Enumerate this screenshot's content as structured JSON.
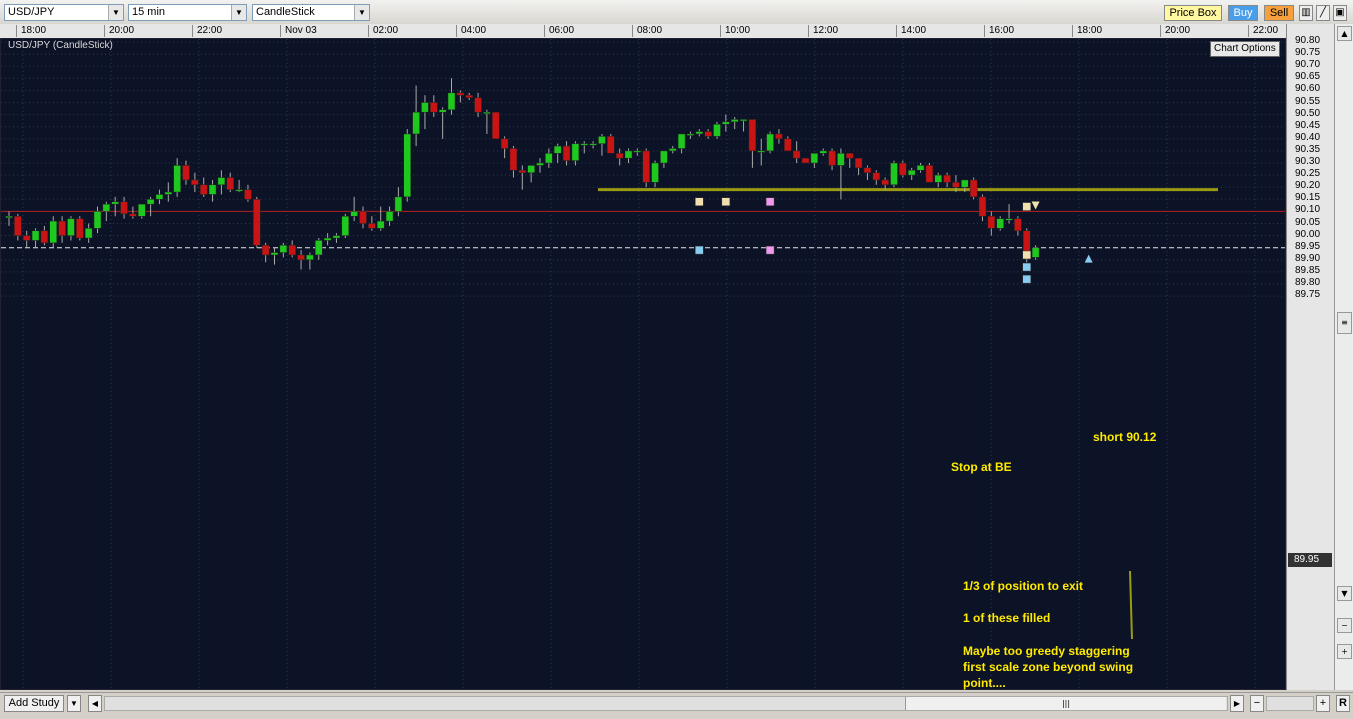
{
  "toolbar": {
    "symbol": "USD/JPY",
    "interval": "15 min",
    "chart_type": "CandleStick",
    "price_box_label": "Price Box",
    "buy_label": "Buy",
    "sell_label": "Sell",
    "colors": {
      "buy": "#4a9ee8",
      "sell": "#f5a03c",
      "price_box": "#fff8a0"
    }
  },
  "chart": {
    "title": "USD/JPY (CandleStick)",
    "options_label": "Chart Options",
    "time_labels": [
      "18:00",
      "20:00",
      "22:00",
      "Nov 03",
      "02:00",
      "04:00",
      "06:00",
      "08:00",
      "10:00",
      "12:00",
      "14:00",
      "16:00",
      "18:00",
      "20:00",
      "22:00"
    ],
    "price_labels": [
      "90.80",
      "90.75",
      "90.70",
      "90.65",
      "90.60",
      "90.55",
      "90.50",
      "90.45",
      "90.40",
      "90.35",
      "90.30",
      "90.25",
      "90.20",
      "90.15",
      "90.10",
      "90.05",
      "90.00",
      "89.95",
      "89.90",
      "89.85",
      "89.80",
      "89.75"
    ],
    "current_price": "89.95",
    "colors": {
      "up": "#1ec81e",
      "down": "#c81414",
      "background": "#0d1326",
      "grid": "#2a3560",
      "annotation": "#ffeb00",
      "support_line": "#9a9a10",
      "stop_line": "#b02020"
    }
  },
  "annotations": {
    "short_entry": "short 90.12",
    "stop": "Stop at BE",
    "exit_note": "1/3 of position to exit",
    "filled_note": "1 of these filled",
    "greedy_note_line1": "Maybe too greedy staggering",
    "greedy_note_line2": "first scale zone beyond swing",
    "greedy_note_line3": "point...."
  },
  "bottom": {
    "add_study_label": "Add Study",
    "zoom_out": "−",
    "zoom_in": "+",
    "reset": "R"
  },
  "chart_data": {
    "type": "candlestick",
    "symbol": "USD/JPY",
    "interval": "15 min",
    "ylim": [
      89.75,
      90.8
    ],
    "candles": [
      [
        90.08,
        90.1,
        90.04,
        90.08
      ],
      [
        90.08,
        90.09,
        89.98,
        90.0
      ],
      [
        90.0,
        90.02,
        89.95,
        89.98
      ],
      [
        89.98,
        90.03,
        89.95,
        90.02
      ],
      [
        90.02,
        90.04,
        89.96,
        89.97
      ],
      [
        89.97,
        90.08,
        89.95,
        90.06
      ],
      [
        90.06,
        90.08,
        89.97,
        90.0
      ],
      [
        90.0,
        90.08,
        89.98,
        90.07
      ],
      [
        90.07,
        90.08,
        89.98,
        89.99
      ],
      [
        89.99,
        90.05,
        89.97,
        90.03
      ],
      [
        90.03,
        90.12,
        90.01,
        90.1
      ],
      [
        90.1,
        90.14,
        90.06,
        90.13
      ],
      [
        90.13,
        90.16,
        90.08,
        90.14
      ],
      [
        90.14,
        90.16,
        90.07,
        90.09
      ],
      [
        90.09,
        90.12,
        90.07,
        90.08
      ],
      [
        90.08,
        90.13,
        90.07,
        90.13
      ],
      [
        90.13,
        90.16,
        90.08,
        90.15
      ],
      [
        90.15,
        90.19,
        90.13,
        90.17
      ],
      [
        90.17,
        90.22,
        90.14,
        90.18
      ],
      [
        90.18,
        90.32,
        90.16,
        90.29
      ],
      [
        90.29,
        90.31,
        90.21,
        90.23
      ],
      [
        90.23,
        90.26,
        90.18,
        90.21
      ],
      [
        90.21,
        90.24,
        90.16,
        90.17
      ],
      [
        90.17,
        90.23,
        90.14,
        90.21
      ],
      [
        90.21,
        90.27,
        90.17,
        90.24
      ],
      [
        90.24,
        90.26,
        90.18,
        90.19
      ],
      [
        90.19,
        90.23,
        90.18,
        90.19
      ],
      [
        90.19,
        90.21,
        90.14,
        90.15
      ],
      [
        90.15,
        90.16,
        89.95,
        89.96
      ],
      [
        89.96,
        89.97,
        89.89,
        89.92
      ],
      [
        89.92,
        89.95,
        89.88,
        89.93
      ],
      [
        89.93,
        89.97,
        89.91,
        89.96
      ],
      [
        89.96,
        89.98,
        89.91,
        89.92
      ],
      [
        89.92,
        89.94,
        89.86,
        89.9
      ],
      [
        89.9,
        89.93,
        89.86,
        89.92
      ],
      [
        89.92,
        89.99,
        89.9,
        89.98
      ],
      [
        89.98,
        90.01,
        89.96,
        89.99
      ],
      [
        89.99,
        90.01,
        89.97,
        90.0
      ],
      [
        90.0,
        90.09,
        89.99,
        90.08
      ],
      [
        90.08,
        90.16,
        90.06,
        90.1
      ],
      [
        90.1,
        90.12,
        90.03,
        90.05
      ],
      [
        90.05,
        90.08,
        90.02,
        90.03
      ],
      [
        90.03,
        90.12,
        90.02,
        90.06
      ],
      [
        90.06,
        90.12,
        90.04,
        90.1
      ],
      [
        90.1,
        90.2,
        90.08,
        90.16
      ],
      [
        90.16,
        90.44,
        90.14,
        90.42
      ],
      [
        90.42,
        90.62,
        90.37,
        90.51
      ],
      [
        90.51,
        90.58,
        90.44,
        90.55
      ],
      [
        90.55,
        90.58,
        90.49,
        90.51
      ],
      [
        90.51,
        90.53,
        90.4,
        90.52
      ],
      [
        90.52,
        90.65,
        90.5,
        90.59
      ],
      [
        90.59,
        90.6,
        90.55,
        90.58
      ],
      [
        90.58,
        90.59,
        90.56,
        90.57
      ],
      [
        90.57,
        90.59,
        90.49,
        90.51
      ],
      [
        90.51,
        90.52,
        90.42,
        90.51
      ],
      [
        90.51,
        90.51,
        90.4,
        90.4
      ],
      [
        90.4,
        90.41,
        90.32,
        90.36
      ],
      [
        90.36,
        90.37,
        90.24,
        90.27
      ],
      [
        90.27,
        90.29,
        90.19,
        90.26
      ],
      [
        90.26,
        90.29,
        90.22,
        90.29
      ],
      [
        90.29,
        90.32,
        90.26,
        90.3
      ],
      [
        90.3,
        90.36,
        90.28,
        90.34
      ],
      [
        90.34,
        90.38,
        90.3,
        90.37
      ],
      [
        90.37,
        90.39,
        90.29,
        90.31
      ],
      [
        90.31,
        90.39,
        90.29,
        90.38
      ],
      [
        90.38,
        90.39,
        90.34,
        90.38
      ],
      [
        90.38,
        90.39,
        90.36,
        90.38
      ],
      [
        90.38,
        90.42,
        90.33,
        90.41
      ],
      [
        90.41,
        90.42,
        90.34,
        90.34
      ],
      [
        90.34,
        90.36,
        90.29,
        90.32
      ],
      [
        90.32,
        90.36,
        90.3,
        90.35
      ],
      [
        90.35,
        90.36,
        90.33,
        90.35
      ],
      [
        90.35,
        90.36,
        90.2,
        90.22
      ],
      [
        90.22,
        90.31,
        90.2,
        90.3
      ],
      [
        90.3,
        90.35,
        90.28,
        90.35
      ],
      [
        90.35,
        90.37,
        90.34,
        90.36
      ],
      [
        90.36,
        90.42,
        90.34,
        90.42
      ],
      [
        90.42,
        90.43,
        90.4,
        90.42
      ],
      [
        90.42,
        90.44,
        90.41,
        90.43
      ],
      [
        90.43,
        90.44,
        90.4,
        90.41
      ],
      [
        90.41,
        90.47,
        90.4,
        90.46
      ],
      [
        90.46,
        90.5,
        90.43,
        90.47
      ],
      [
        90.47,
        90.49,
        90.44,
        90.48
      ],
      [
        90.48,
        90.48,
        90.43,
        90.48
      ],
      [
        90.48,
        90.48,
        90.28,
        90.35
      ],
      [
        90.35,
        90.4,
        90.29,
        90.35
      ],
      [
        90.35,
        90.43,
        90.34,
        90.42
      ],
      [
        90.42,
        90.44,
        90.38,
        90.4
      ],
      [
        90.4,
        90.41,
        90.35,
        90.35
      ],
      [
        90.35,
        90.39,
        90.3,
        90.32
      ],
      [
        90.32,
        90.32,
        90.3,
        90.3
      ],
      [
        90.3,
        90.34,
        90.28,
        90.34
      ],
      [
        90.34,
        90.36,
        90.33,
        90.35
      ],
      [
        90.35,
        90.36,
        90.27,
        90.29
      ],
      [
        90.29,
        90.36,
        90.15,
        90.34
      ],
      [
        90.34,
        90.34,
        90.28,
        90.32
      ],
      [
        90.32,
        90.32,
        90.25,
        90.28
      ],
      [
        90.28,
        90.29,
        90.23,
        90.26
      ],
      [
        90.26,
        90.27,
        90.21,
        90.23
      ],
      [
        90.23,
        90.24,
        90.19,
        90.21
      ],
      [
        90.21,
        90.31,
        90.2,
        90.3
      ],
      [
        90.3,
        90.31,
        90.24,
        90.25
      ],
      [
        90.25,
        90.28,
        90.23,
        90.27
      ],
      [
        90.27,
        90.3,
        90.26,
        90.29
      ],
      [
        90.29,
        90.3,
        90.22,
        90.22
      ],
      [
        90.22,
        90.26,
        90.2,
        90.25
      ],
      [
        90.25,
        90.26,
        90.2,
        90.22
      ],
      [
        90.22,
        90.25,
        90.18,
        90.2
      ],
      [
        90.2,
        90.23,
        90.18,
        90.23
      ],
      [
        90.23,
        90.24,
        90.15,
        90.16
      ],
      [
        90.16,
        90.17,
        90.06,
        90.08
      ],
      [
        90.08,
        90.1,
        90.0,
        90.03
      ],
      [
        90.03,
        90.08,
        90.02,
        90.07
      ],
      [
        90.07,
        90.13,
        90.05,
        90.07
      ],
      [
        90.07,
        90.08,
        90.0,
        90.02
      ],
      [
        90.02,
        90.03,
        89.89,
        89.91
      ],
      [
        89.91,
        89.96,
        89.9,
        89.95
      ]
    ],
    "support_level": 90.19,
    "stop_level": 90.1,
    "current_price": 89.95,
    "short_entry": 90.12,
    "order_markers": [
      {
        "price": 90.14,
        "color": "#f0e0b0",
        "index": 78
      },
      {
        "price": 90.14,
        "color": "#f0e0b0",
        "index": 81
      },
      {
        "price": 90.14,
        "color": "#ee99ee",
        "index": 86
      },
      {
        "price": 89.94,
        "color": "#88ccf0",
        "index": 78
      },
      {
        "price": 89.94,
        "color": "#ee99ee",
        "index": 86
      },
      {
        "price": 90.12,
        "color": "#f0e0b0",
        "index": 115
      },
      {
        "price": 89.92,
        "color": "#f0e0b0",
        "index": 115
      },
      {
        "price": 89.87,
        "color": "#88ccf0",
        "index": 115
      },
      {
        "price": 89.82,
        "color": "#88ccf0",
        "index": 115
      }
    ]
  }
}
